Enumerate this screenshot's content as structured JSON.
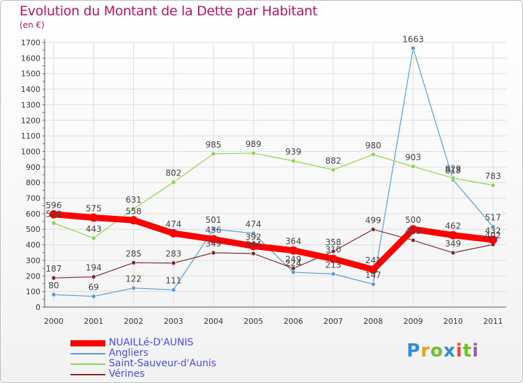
{
  "title": "Evolution du Montant de la Dette par Habitant",
  "subtitle": "(en €)",
  "logo_text": "Proxiti",
  "chart_data": {
    "type": "line",
    "x": [
      "2000",
      "2001",
      "2002",
      "2003",
      "2004",
      "2005",
      "2006",
      "2007",
      "2008",
      "2009",
      "2010",
      "2011"
    ],
    "ylim": [
      0,
      1700
    ],
    "yticks": [
      0,
      100,
      200,
      300,
      400,
      500,
      600,
      700,
      800,
      900,
      1000,
      1100,
      1200,
      1300,
      1400,
      1500,
      1600,
      1700
    ],
    "grid": true,
    "legend_position": "bottom-left",
    "series": [
      {
        "name": "NUAILLé-D'AUNIS",
        "color": "#ff0000",
        "width": 9,
        "values": [
          596,
          575,
          558,
          474,
          436,
          392,
          364,
          310,
          241,
          500,
          462,
          432
        ],
        "labels": [
          "596",
          "575",
          "558",
          "474",
          "436",
          "392",
          "364",
          "310",
          "241",
          "500",
          "462",
          "432"
        ]
      },
      {
        "name": "Angliers",
        "color": "#5b9bd5",
        "width": 1.2,
        "values": [
          80,
          69,
          122,
          111,
          501,
          474,
          224,
          213,
          147,
          1663,
          818,
          517
        ],
        "labels": [
          "80",
          "69",
          "122",
          "111",
          "501",
          "474",
          "224",
          "213",
          "147",
          "1663",
          "818",
          "517"
        ]
      },
      {
        "name": "Saint-Sauveur-d'Aunis",
        "color": "#8ed14d",
        "width": 1.2,
        "values": [
          540,
          443,
          631,
          802,
          985,
          989,
          939,
          882,
          980,
          903,
          829,
          783
        ],
        "labels": [
          "540",
          "443",
          "631",
          "802",
          "985",
          "989",
          "939",
          "882",
          "980",
          "903",
          "829",
          "783"
        ]
      },
      {
        "name": "Vérines",
        "color": "#7b2a2a",
        "width": 1.2,
        "values": [
          187,
          194,
          285,
          283,
          349,
          344,
          249,
          358,
          499,
          429,
          349,
          402
        ],
        "labels": [
          "187",
          "194",
          "285",
          "283",
          "349",
          "344",
          "249",
          "358",
          "499",
          "429",
          "349",
          "402"
        ]
      }
    ]
  }
}
